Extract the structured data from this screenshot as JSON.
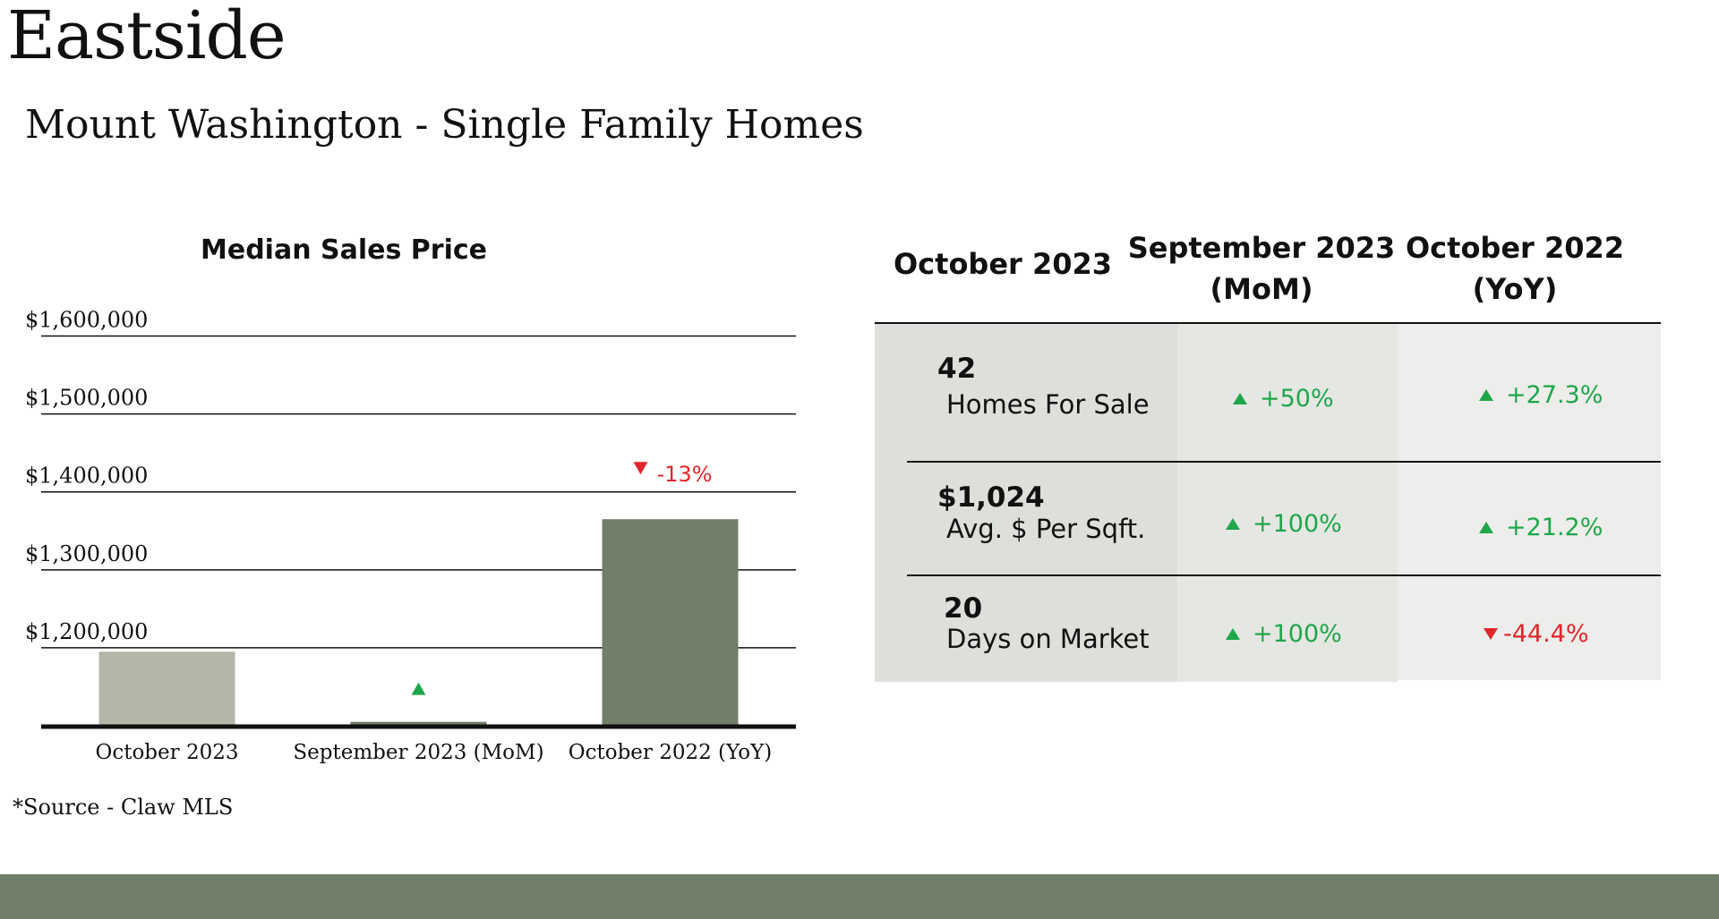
{
  "page": {
    "title": "Eastside",
    "subtitle": "Mount Washington - Single Family Homes",
    "source_note": "*Source - Claw MLS"
  },
  "colors": {
    "accent": "#717e68",
    "bar_current": "#b5b6aa",
    "bar_other": "#717e68",
    "up": "#1fa64a",
    "down": "#e0262b",
    "col1_bg": "#dcdfda",
    "col2_bg": "#e5e7e3",
    "col3_bg": "#ededeb"
  },
  "chart_data": {
    "type": "bar",
    "title": "Median Sales Price",
    "categories": [
      "October 2023",
      "September 2023 (MoM)",
      "October 2022 (YoY)"
    ],
    "values": [
      1195000,
      1105000,
      1365000
    ],
    "ylim": [
      1100000,
      1650000
    ],
    "yticks": [
      1200000,
      1300000,
      1400000,
      1500000,
      1600000
    ],
    "ytick_labels": [
      "$1,200,000",
      "$1,300,000",
      "$1,400,000",
      "$1,500,000",
      "$1,600,000"
    ],
    "annotations": [
      {
        "category_index": 1,
        "direction": "up",
        "text": ""
      },
      {
        "category_index": 2,
        "direction": "down",
        "text": "-13%"
      }
    ]
  },
  "table": {
    "headers": [
      "October 2023",
      "September 2023\n(MoM)",
      "October 2022\n(YoY)"
    ],
    "rows": [
      {
        "value": "42",
        "label": "Homes For Sale",
        "mom": {
          "text": "+50%",
          "dir": "up"
        },
        "yoy": {
          "text": "+27.3%",
          "dir": "up"
        }
      },
      {
        "value": "$1,024",
        "label": "Avg. $ Per Sqft.",
        "mom": {
          "text": "+100%",
          "dir": "up"
        },
        "yoy": {
          "text": "+21.2%",
          "dir": "up"
        }
      },
      {
        "value": "20",
        "label": "Days on Market",
        "mom": {
          "text": "+100%",
          "dir": "up"
        },
        "yoy": {
          "text": "-44.4%",
          "dir": "down"
        }
      }
    ]
  }
}
